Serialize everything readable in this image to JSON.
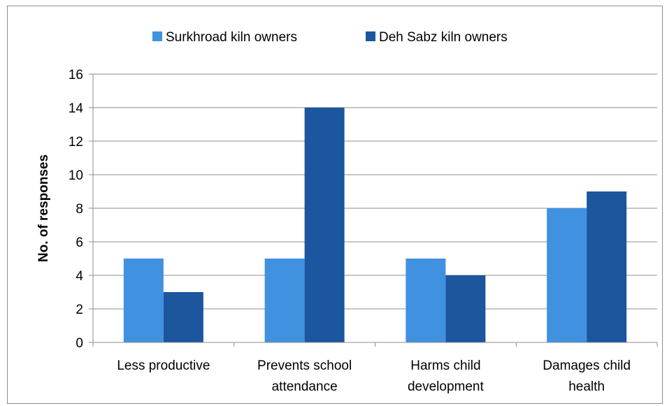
{
  "chart_data": {
    "type": "bar",
    "title": "",
    "xlabel": "",
    "ylabel": "No. of responses",
    "ylim": [
      0,
      16
    ],
    "yticks": [
      0,
      2,
      4,
      6,
      8,
      10,
      12,
      14,
      16
    ],
    "grid": true,
    "legend_position": "top",
    "categories": [
      [
        "Less productive"
      ],
      [
        "Prevents school",
        "attendance"
      ],
      [
        "Harms child",
        "development"
      ],
      [
        "Damages child",
        "health"
      ]
    ],
    "series": [
      {
        "name": "Surkhroad kiln owners",
        "color": "#4191e1",
        "values": [
          5,
          5,
          5,
          8
        ]
      },
      {
        "name": "Deh Sabz kiln owners",
        "color": "#1b569e",
        "values": [
          3,
          14,
          4,
          9
        ]
      }
    ]
  }
}
